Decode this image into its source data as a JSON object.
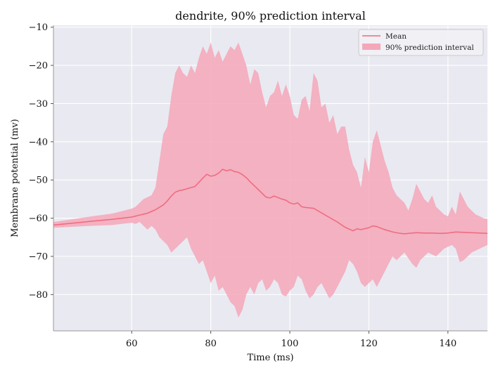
{
  "chart_data": {
    "type": "area",
    "title": "dendrite, 90% prediction interval",
    "xlabel": "Time (ms)",
    "ylabel": "Membrane potential (mv)",
    "xlim": [
      40.2,
      150
    ],
    "ylim": [
      -89.5,
      -9.5
    ],
    "xticks": [
      60,
      80,
      100,
      120,
      140
    ],
    "yticks": [
      -80,
      -70,
      -60,
      -50,
      -40,
      -30,
      -20,
      -10
    ],
    "grid": true,
    "legend_position": "top-right",
    "colors": {
      "background": "#e9e9f1",
      "grid": "#ffffff",
      "mean_line": "#f0687d",
      "interval_fill": "#f4a7b9"
    },
    "series": [
      {
        "name": "Mean",
        "kind": "line",
        "x": [
          40,
          50,
          55,
          60,
          62,
          64,
          66,
          68,
          69,
          70,
          71,
          72,
          73,
          74,
          76,
          78,
          79,
          80,
          81,
          82,
          83,
          84,
          85,
          86,
          87,
          88,
          89,
          90,
          92,
          93,
          94,
          95,
          96,
          97,
          98,
          99,
          100,
          101,
          102,
          103,
          104,
          106,
          108,
          110,
          112,
          114,
          116,
          117,
          118,
          120,
          121,
          122,
          124,
          126,
          128,
          129,
          130,
          132,
          134,
          136,
          138,
          140,
          142,
          144,
          146,
          148,
          150
        ],
        "values": [
          -61.8,
          -60.8,
          -60.3,
          -59.7,
          -59.2,
          -58.7,
          -57.8,
          -56.5,
          -55.5,
          -54.2,
          -53.2,
          -52.8,
          -52.6,
          -52.3,
          -51.7,
          -49.5,
          -48.5,
          -49.0,
          -48.8,
          -48.2,
          -47.2,
          -47.6,
          -47.3,
          -47.8,
          -48.0,
          -48.6,
          -49.4,
          -50.5,
          -52.5,
          -53.5,
          -54.5,
          -54.7,
          -54.2,
          -54.6,
          -55.0,
          -55.3,
          -56.0,
          -56.3,
          -56.0,
          -57.0,
          -57.2,
          -57.4,
          -58.6,
          -59.8,
          -61.0,
          -62.4,
          -63.3,
          -62.8,
          -63.0,
          -62.5,
          -62.0,
          -62.2,
          -63.0,
          -63.6,
          -64.0,
          -64.1,
          -64.0,
          -63.8,
          -63.9,
          -63.9,
          -64.0,
          -63.9,
          -63.6,
          -63.7,
          -63.8,
          -63.9,
          -64.0
        ]
      },
      {
        "name": "90% prediction interval",
        "kind": "band",
        "x": [
          40,
          50,
          55,
          60,
          61,
          62,
          63,
          64,
          65,
          66,
          67,
          68,
          69,
          70,
          71,
          72,
          73,
          74,
          75,
          76,
          77,
          78,
          79,
          80,
          81,
          82,
          83,
          84,
          85,
          86,
          87,
          88,
          89,
          90,
          91,
          92,
          93,
          94,
          95,
          96,
          97,
          98,
          99,
          100,
          101,
          102,
          103,
          104,
          105,
          106,
          107,
          108,
          109,
          110,
          111,
          112,
          113,
          114,
          115,
          116,
          117,
          118,
          119,
          120,
          121,
          122,
          123,
          124,
          125,
          126,
          127,
          128,
          129,
          130,
          131,
          132,
          133,
          134,
          135,
          136,
          137,
          138,
          139,
          140,
          141,
          142,
          143,
          144,
          145,
          146,
          147,
          148,
          149,
          150
        ],
        "upper": [
          -61.0,
          -59.5,
          -58.8,
          -57.5,
          -57.0,
          -56.0,
          -55.0,
          -54.5,
          -54.0,
          -52.0,
          -45.0,
          -38.0,
          -36.0,
          -28.0,
          -22.0,
          -20.0,
          -22.0,
          -23.0,
          -20.0,
          -22.0,
          -18.0,
          -15.0,
          -17.0,
          -14.0,
          -18.0,
          -16.0,
          -19.0,
          -17.0,
          -15.0,
          -16.0,
          -14.0,
          -17.0,
          -20.0,
          -25.0,
          -21.0,
          -22.0,
          -27.0,
          -31.0,
          -28.0,
          -27.0,
          -24.0,
          -28.0,
          -25.0,
          -28.0,
          -33.0,
          -34.0,
          -29.0,
          -28.0,
          -32.0,
          -22.0,
          -24.0,
          -31.0,
          -30.0,
          -35.0,
          -33.0,
          -38.0,
          -36.0,
          -36.0,
          -42.0,
          -46.0,
          -48.0,
          -52.0,
          -44.0,
          -48.0,
          -40.0,
          -37.0,
          -41.0,
          -45.0,
          -48.0,
          -52.0,
          -54.0,
          -55.0,
          -56.0,
          -58.0,
          -55.0,
          -51.0,
          -53.0,
          -55.0,
          -56.0,
          -54.0,
          -57.0,
          -58.0,
          -59.0,
          -59.5,
          -57.0,
          -59.0,
          -53.0,
          -55.0,
          -57.0,
          -58.0,
          -59.0,
          -59.5,
          -60.0,
          -60.2
        ],
        "lower": [
          -62.5,
          -62.0,
          -61.8,
          -61.2,
          -61.5,
          -61.0,
          -62.0,
          -63.0,
          -62.0,
          -63.0,
          -65.0,
          -66.0,
          -67.0,
          -69.0,
          -68.0,
          -67.0,
          -66.0,
          -65.0,
          -68.0,
          -70.0,
          -72.0,
          -71.0,
          -74.0,
          -77.0,
          -75.0,
          -79.0,
          -78.0,
          -80.0,
          -82.0,
          -83.0,
          -86.0,
          -84.0,
          -80.0,
          -78.0,
          -80.0,
          -77.0,
          -76.0,
          -79.0,
          -78.0,
          -76.0,
          -77.0,
          -80.0,
          -80.5,
          -79.0,
          -78.0,
          -75.0,
          -76.0,
          -79.0,
          -81.0,
          -80.0,
          -78.0,
          -77.0,
          -79.0,
          -81.0,
          -80.0,
          -78.0,
          -76.0,
          -74.0,
          -71.0,
          -72.0,
          -74.0,
          -77.0,
          -78.0,
          -77.0,
          -76.0,
          -78.0,
          -76.0,
          -74.0,
          -72.0,
          -70.0,
          -71.0,
          -70.0,
          -69.0,
          -70.5,
          -72.0,
          -73.0,
          -71.0,
          -70.0,
          -69.0,
          -69.5,
          -70.0,
          -69.0,
          -68.0,
          -67.5,
          -67.0,
          -68.0,
          -71.5,
          -71.0,
          -70.0,
          -69.0,
          -68.5,
          -68.0,
          -67.5,
          -67.0
        ]
      }
    ]
  }
}
